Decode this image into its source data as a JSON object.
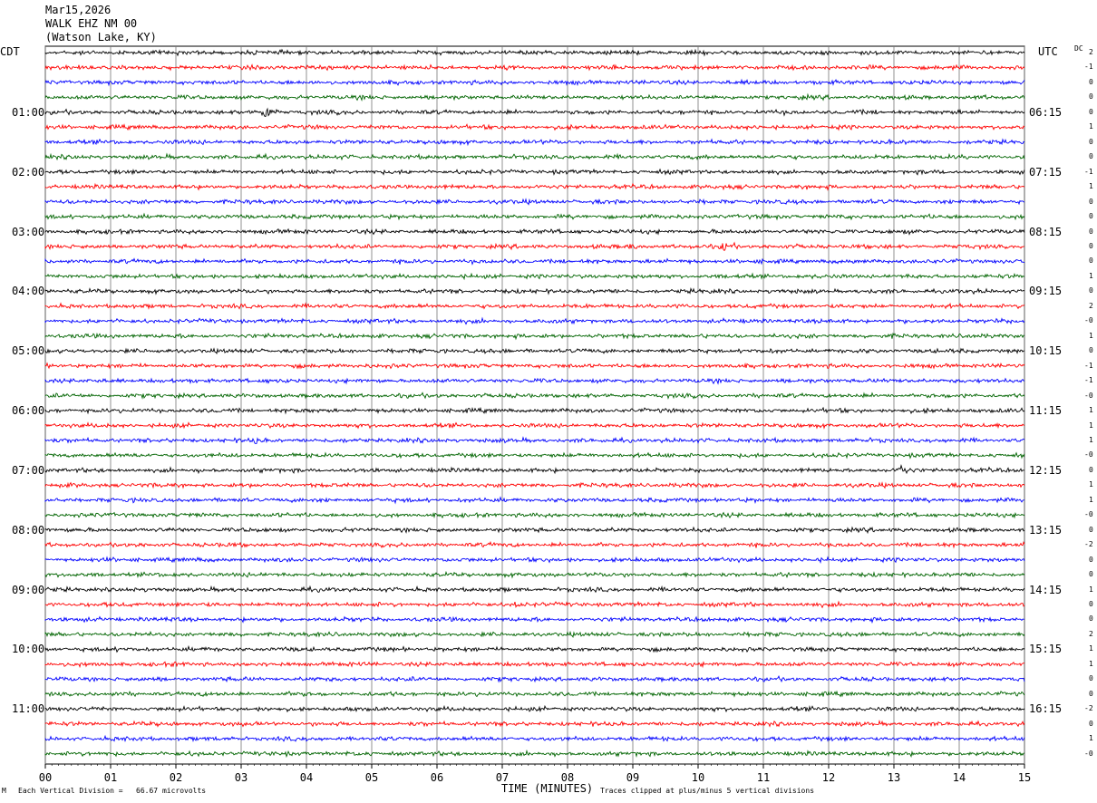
{
  "header": {
    "date": "Mar15,2026",
    "station": "WALK EHZ NM 00",
    "location": "(Watson Lake, KY)"
  },
  "left_tz": "CDT",
  "right_tz": "UTC",
  "dc_header": "DC",
  "footer": {
    "division": "Each Vertical Division =   66.67 microvolts",
    "xlabel": "TIME (MINUTES)",
    "clip": "Traces clipped at plus/minus 5 vertical divisions",
    "mark": "M"
  },
  "colors": {
    "black": "#000000",
    "red": "#ff0000",
    "blue": "#0000ff",
    "green": "#006400"
  },
  "chart_data": {
    "type": "line",
    "title": "WALK EHZ NM 00",
    "xlabel": "TIME (MINUTES)",
    "x_ticks": [
      "00",
      "01",
      "02",
      "03",
      "04",
      "05",
      "06",
      "07",
      "08",
      "09",
      "10",
      "11",
      "12",
      "13",
      "14",
      "15"
    ],
    "xlim": [
      0,
      15
    ],
    "grid": "vertical lines every minute",
    "traces_per_hour": 4,
    "trace_color_cycle": [
      "black",
      "red",
      "blue",
      "green"
    ],
    "left_hour_labels": [
      {
        "trace": 4,
        "label": "01:00"
      },
      {
        "trace": 8,
        "label": "02:00"
      },
      {
        "trace": 12,
        "label": "03:00"
      },
      {
        "trace": 16,
        "label": "04:00"
      },
      {
        "trace": 20,
        "label": "05:00"
      },
      {
        "trace": 24,
        "label": "06:00"
      },
      {
        "trace": 28,
        "label": "07:00"
      },
      {
        "trace": 32,
        "label": "08:00"
      },
      {
        "trace": 36,
        "label": "09:00"
      },
      {
        "trace": 40,
        "label": "10:00"
      },
      {
        "trace": 44,
        "label": "11:00"
      }
    ],
    "right_hour_labels": [
      {
        "trace": 4,
        "label": "06:15"
      },
      {
        "trace": 8,
        "label": "07:15"
      },
      {
        "trace": 12,
        "label": "08:15"
      },
      {
        "trace": 16,
        "label": "09:15"
      },
      {
        "trace": 20,
        "label": "10:15"
      },
      {
        "trace": 24,
        "label": "11:15"
      },
      {
        "trace": 28,
        "label": "12:15"
      },
      {
        "trace": 32,
        "label": "13:15"
      },
      {
        "trace": 36,
        "label": "14:15"
      },
      {
        "trace": 40,
        "label": "15:15"
      },
      {
        "trace": 44,
        "label": "16:15"
      }
    ],
    "dc_offsets": [
      "2",
      "-1",
      "0",
      "0",
      "0",
      "1",
      "0",
      "0",
      "-1",
      "1",
      "0",
      "0",
      "0",
      "0",
      "0",
      "1",
      "0",
      "2",
      "-0",
      "1",
      "0",
      "-1",
      "-1",
      "-0",
      "1",
      "1",
      "1",
      "-0",
      "0",
      "1",
      "1",
      "-0",
      "0",
      "-2",
      "0",
      "0",
      "1",
      "0",
      "0",
      "2",
      "1",
      "1",
      "0",
      "0",
      "-2",
      "0",
      "1",
      "-0"
    ],
    "events": [
      {
        "trace": 4,
        "minute": 3.32,
        "amplitude": "large"
      },
      {
        "trace": 13,
        "minute": 10.38,
        "amplitude": "medium"
      },
      {
        "trace": 13,
        "minute": 8.97,
        "amplitude": "small"
      },
      {
        "trace": 26,
        "minute": 3.2,
        "amplitude": "small"
      },
      {
        "trace": 28,
        "minute": 13.1,
        "amplitude": "medium"
      },
      {
        "trace": 37,
        "minute": 7.2,
        "amplitude": "small"
      }
    ]
  }
}
